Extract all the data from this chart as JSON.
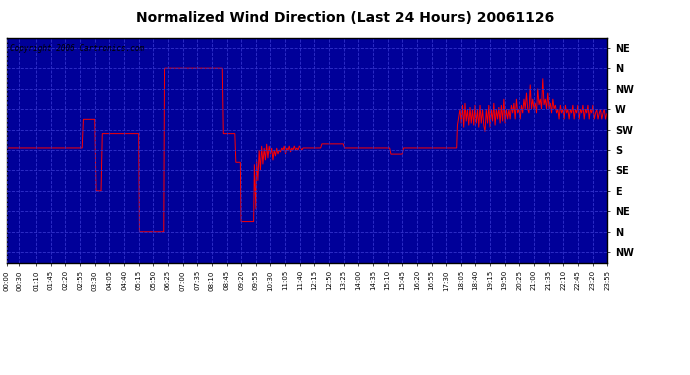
{
  "title": "Normalized Wind Direction (Last 24 Hours) 20061126",
  "copyright": "Copyright 2006 Cartronics.com",
  "plot_bg_color": "#000099",
  "line_color": "#ff0000",
  "grid_color": "#3333cc",
  "title_color": "#000000",
  "fig_bg": "#ffffff",
  "border_color": "#000000",
  "ytick_labels": [
    "NE",
    "N",
    "NW",
    "W",
    "SW",
    "S",
    "SE",
    "E",
    "NE",
    "N",
    "NW"
  ],
  "ytick_values": [
    10,
    9,
    8,
    7,
    6,
    5,
    4,
    3,
    2,
    1,
    0
  ],
  "ylim": [
    -0.5,
    10.5
  ],
  "xlim": [
    0,
    23.9167
  ],
  "xtick_minutes": [
    0,
    30,
    70,
    105,
    140,
    175,
    210,
    245,
    280,
    315,
    350,
    385,
    420,
    455,
    490,
    525,
    560,
    595,
    630,
    665,
    700,
    735,
    770,
    805,
    840,
    875,
    910,
    945,
    980,
    1015,
    1050,
    1085,
    1120,
    1155,
    1190,
    1225,
    1260,
    1295,
    1330,
    1365,
    1400,
    1435
  ],
  "xtick_labels": [
    "00:00",
    "00:30",
    "01:10",
    "01:45",
    "02:20",
    "02:55",
    "03:30",
    "04:05",
    "04:40",
    "05:15",
    "05:50",
    "06:25",
    "07:00",
    "07:35",
    "08:10",
    "08:45",
    "09:20",
    "09:55",
    "10:30",
    "11:05",
    "11:40",
    "12:15",
    "12:50",
    "13:25",
    "14:00",
    "14:35",
    "15:10",
    "15:45",
    "16:20",
    "16:55",
    "17:30",
    "18:05",
    "18:40",
    "19:15",
    "19:50",
    "20:25",
    "21:00",
    "21:35",
    "22:10",
    "22:45",
    "23:20",
    "23:55"
  ],
  "wind_segments": [
    [
      0.0,
      5.1
    ],
    [
      3.0,
      5.1
    ],
    [
      3.05,
      6.5
    ],
    [
      3.5,
      6.5
    ],
    [
      3.55,
      3.0
    ],
    [
      3.75,
      3.0
    ],
    [
      3.8,
      5.8
    ],
    [
      5.25,
      5.8
    ],
    [
      5.28,
      1.0
    ],
    [
      6.25,
      1.0
    ],
    [
      6.28,
      9.0
    ],
    [
      8.58,
      9.0
    ],
    [
      8.62,
      5.8
    ],
    [
      9.08,
      5.8
    ],
    [
      9.12,
      4.4
    ],
    [
      9.3,
      4.4
    ],
    [
      9.33,
      1.5
    ],
    [
      9.83,
      1.5
    ],
    [
      9.86,
      4.3
    ],
    [
      9.92,
      2.1
    ],
    [
      9.95,
      4.5
    ],
    [
      10.0,
      3.5
    ],
    [
      10.05,
      5.0
    ],
    [
      10.1,
      4.0
    ],
    [
      10.15,
      5.2
    ],
    [
      10.2,
      4.3
    ],
    [
      10.25,
      5.1
    ],
    [
      10.3,
      4.5
    ],
    [
      10.35,
      5.3
    ],
    [
      10.4,
      4.6
    ],
    [
      10.45,
      5.2
    ],
    [
      10.5,
      4.8
    ],
    [
      10.55,
      5.1
    ],
    [
      10.6,
      4.5
    ],
    [
      10.65,
      5.0
    ],
    [
      10.7,
      4.7
    ],
    [
      10.75,
      5.1
    ],
    [
      10.8,
      4.8
    ],
    [
      10.85,
      5.0
    ],
    [
      10.9,
      4.9
    ],
    [
      10.95,
      5.1
    ],
    [
      11.0,
      5.0
    ],
    [
      11.05,
      5.2
    ],
    [
      11.1,
      4.8
    ],
    [
      11.15,
      5.1
    ],
    [
      11.2,
      5.0
    ],
    [
      11.25,
      5.2
    ],
    [
      11.3,
      4.9
    ],
    [
      11.35,
      5.1
    ],
    [
      11.4,
      5.0
    ],
    [
      11.45,
      5.2
    ],
    [
      11.5,
      5.0
    ],
    [
      11.55,
      5.1
    ],
    [
      11.6,
      5.0
    ],
    [
      11.65,
      5.2
    ],
    [
      11.7,
      5.1
    ],
    [
      11.75,
      5.0
    ],
    [
      11.8,
      5.1
    ],
    [
      12.0,
      5.1
    ],
    [
      12.5,
      5.1
    ],
    [
      12.55,
      5.3
    ],
    [
      13.4,
      5.3
    ],
    [
      13.45,
      5.1
    ],
    [
      15.25,
      5.1
    ],
    [
      15.3,
      4.8
    ],
    [
      15.75,
      4.8
    ],
    [
      15.8,
      5.1
    ],
    [
      17.92,
      5.1
    ],
    [
      17.95,
      6.2
    ],
    [
      18.05,
      7.0
    ],
    [
      18.1,
      6.3
    ],
    [
      18.15,
      7.2
    ],
    [
      18.2,
      6.1
    ],
    [
      18.25,
      7.3
    ],
    [
      18.3,
      6.4
    ],
    [
      18.35,
      7.0
    ],
    [
      18.4,
      6.2
    ],
    [
      18.45,
      7.1
    ],
    [
      18.5,
      6.3
    ],
    [
      18.55,
      7.0
    ],
    [
      18.6,
      6.2
    ],
    [
      18.65,
      7.2
    ],
    [
      18.7,
      6.3
    ],
    [
      18.75,
      7.0
    ],
    [
      18.8,
      6.1
    ],
    [
      18.85,
      7.2
    ],
    [
      18.9,
      6.3
    ],
    [
      18.95,
      7.0
    ],
    [
      19.0,
      6.2
    ],
    [
      19.05,
      5.9
    ],
    [
      19.1,
      7.0
    ],
    [
      19.15,
      6.3
    ],
    [
      19.2,
      7.2
    ],
    [
      19.25,
      6.1
    ],
    [
      19.3,
      7.0
    ],
    [
      19.35,
      6.4
    ],
    [
      19.4,
      7.3
    ],
    [
      19.45,
      6.2
    ],
    [
      19.5,
      7.0
    ],
    [
      19.55,
      6.5
    ],
    [
      19.6,
      7.1
    ],
    [
      19.65,
      6.3
    ],
    [
      19.7,
      7.2
    ],
    [
      19.75,
      6.4
    ],
    [
      19.8,
      7.5
    ],
    [
      19.85,
      6.3
    ],
    [
      19.9,
      7.0
    ],
    [
      19.95,
      6.5
    ],
    [
      20.0,
      7.0
    ],
    [
      20.05,
      6.5
    ],
    [
      20.1,
      7.2
    ],
    [
      20.15,
      6.8
    ],
    [
      20.2,
      7.3
    ],
    [
      20.25,
      6.5
    ],
    [
      20.3,
      7.5
    ],
    [
      20.35,
      6.8
    ],
    [
      20.4,
      7.0
    ],
    [
      20.45,
      6.5
    ],
    [
      20.5,
      7.2
    ],
    [
      20.55,
      6.8
    ],
    [
      20.6,
      7.5
    ],
    [
      20.65,
      7.0
    ],
    [
      20.7,
      7.8
    ],
    [
      20.75,
      7.0
    ],
    [
      20.8,
      6.8
    ],
    [
      20.85,
      8.2
    ],
    [
      20.9,
      7.0
    ],
    [
      20.95,
      7.5
    ],
    [
      21.0,
      7.0
    ],
    [
      21.05,
      7.3
    ],
    [
      21.1,
      6.8
    ],
    [
      21.15,
      8.0
    ],
    [
      21.2,
      7.2
    ],
    [
      21.25,
      7.5
    ],
    [
      21.3,
      7.0
    ],
    [
      21.35,
      8.5
    ],
    [
      21.4,
      7.2
    ],
    [
      21.45,
      7.5
    ],
    [
      21.5,
      7.0
    ],
    [
      21.55,
      7.8
    ],
    [
      21.6,
      7.0
    ],
    [
      21.65,
      7.3
    ],
    [
      21.7,
      6.8
    ],
    [
      21.75,
      7.5
    ],
    [
      21.8,
      7.0
    ],
    [
      21.85,
      7.2
    ],
    [
      21.9,
      6.8
    ],
    [
      21.95,
      7.0
    ],
    [
      22.0,
      6.5
    ],
    [
      22.05,
      7.2
    ],
    [
      22.1,
      6.8
    ],
    [
      22.15,
      7.0
    ],
    [
      22.2,
      6.5
    ],
    [
      22.25,
      7.2
    ],
    [
      22.3,
      6.8
    ],
    [
      22.35,
      7.0
    ],
    [
      22.4,
      6.5
    ],
    [
      22.45,
      7.0
    ],
    [
      22.5,
      6.8
    ],
    [
      22.55,
      7.2
    ],
    [
      22.6,
      6.5
    ],
    [
      22.65,
      7.0
    ],
    [
      22.7,
      6.8
    ],
    [
      22.75,
      7.2
    ],
    [
      22.8,
      6.5
    ],
    [
      22.85,
      7.0
    ],
    [
      22.9,
      6.8
    ],
    [
      22.95,
      7.2
    ],
    [
      23.0,
      6.5
    ],
    [
      23.05,
      7.0
    ],
    [
      23.1,
      6.8
    ],
    [
      23.15,
      7.2
    ],
    [
      23.2,
      6.5
    ],
    [
      23.25,
      7.0
    ],
    [
      23.3,
      6.8
    ],
    [
      23.35,
      7.2
    ],
    [
      23.4,
      6.5
    ],
    [
      23.45,
      6.8
    ],
    [
      23.5,
      7.0
    ],
    [
      23.55,
      6.5
    ],
    [
      23.6,
      6.8
    ],
    [
      23.65,
      7.0
    ],
    [
      23.7,
      6.5
    ],
    [
      23.75,
      6.8
    ],
    [
      23.8,
      7.0
    ],
    [
      23.85,
      6.5
    ],
    [
      23.9,
      6.8
    ]
  ]
}
